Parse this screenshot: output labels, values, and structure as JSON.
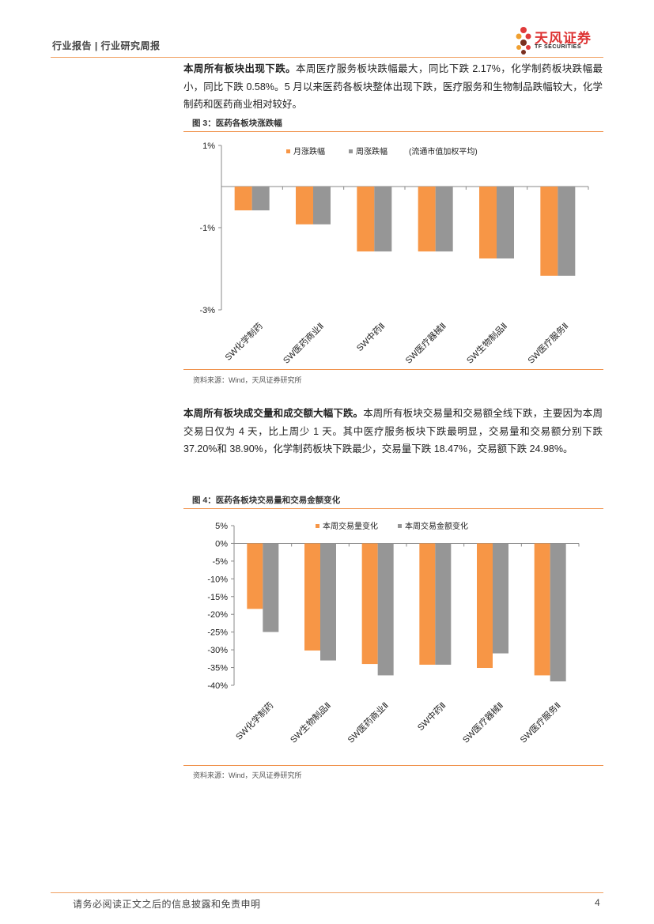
{
  "header": {
    "left": "行业报告 | 行业研究周报"
  },
  "logo": {
    "name": "天风证券",
    "sub": "TF SECURITIES"
  },
  "para1": {
    "lead": "本周所有板块出现下跌。",
    "body": "本周医疗服务板块跌幅最大，同比下跌 2.17%，化学制药板块跌幅最小，同比下跌 0.58%。5 月以来医药各板块整体出现下跌，医疗服务和生物制品跌幅较大，化学制药和医药商业相对较好。"
  },
  "para2": {
    "lead": "本周所有板块成交量和成交额大幅下跌。",
    "body": "本周所有板块交易量和交易额全线下跌，主要因为本周交易日仅为 4 天，比上周少 1 天。其中医疗服务板块下跌最明显，交易量和交易额分别下跌 37.20%和 38.90%，化学制药板块下跌最少，交易量下跌 18.47%，交易额下跌 24.98%。"
  },
  "fig3": {
    "title": "图 3：医药各板块涨跌幅",
    "source": "资料来源：Wind，天风证券研究所"
  },
  "fig4": {
    "title": "图 4：医药各板块交易量和交易金额变化",
    "source": "资料来源：Wind，天风证券研究所"
  },
  "chart_data": [
    {
      "type": "bar",
      "categories": [
        "SW化学制药",
        "SW医药商业Ⅱ",
        "SW中药Ⅱ",
        "SW医疗器械Ⅱ",
        "SW生物制品Ⅱ",
        "SW医疗服务Ⅱ"
      ],
      "series": [
        {
          "name": "月涨跌幅",
          "values": [
            -0.58,
            -0.92,
            -1.58,
            -1.58,
            -1.75,
            -2.17
          ],
          "color": "#f79646"
        },
        {
          "name": "周涨跌幅",
          "values": [
            -0.58,
            -0.92,
            -1.58,
            -1.58,
            -1.75,
            -2.17
          ],
          "color": "#969696"
        }
      ],
      "legend_note": "(流通市值加权平均)",
      "yticks": [
        "1%",
        "-1%",
        "-3%"
      ],
      "ylim": [
        -3,
        1
      ],
      "legend": "top"
    },
    {
      "type": "bar",
      "categories": [
        "SW化学制药",
        "SW生物制品Ⅱ",
        "SW医药商业Ⅱ",
        "SW中药Ⅱ",
        "SW医疗器械Ⅱ",
        "SW医疗服务Ⅱ"
      ],
      "series": [
        {
          "name": "本周交易量变化",
          "values": [
            -18.47,
            -30.2,
            -34.0,
            -34.2,
            -35.1,
            -37.2
          ],
          "color": "#f79646"
        },
        {
          "name": "本周交易金额变化",
          "values": [
            -24.98,
            -33.0,
            -37.2,
            -34.2,
            -31.0,
            -38.9
          ],
          "color": "#969696"
        }
      ],
      "yticks": [
        "5%",
        "0%",
        "-5%",
        "-10%",
        "-15%",
        "-20%",
        "-25%",
        "-30%",
        "-35%",
        "-40%"
      ],
      "ylim": [
        -40,
        5
      ],
      "legend": "top"
    }
  ],
  "footer": {
    "text": "请务必阅读正文之后的信息披露和免责申明",
    "page": "4"
  }
}
